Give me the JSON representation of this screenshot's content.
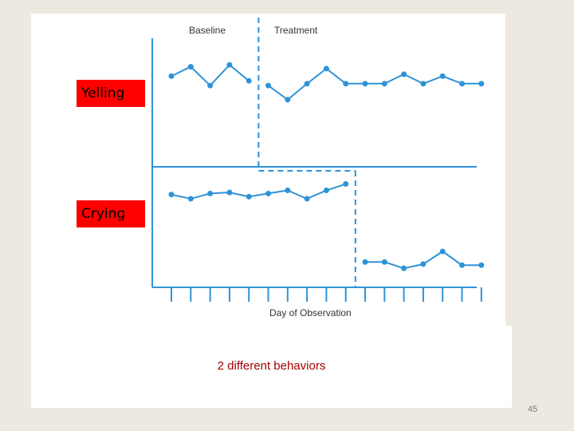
{
  "chart_data": {
    "type": "line",
    "design": "multiple-baseline across behaviors",
    "xlabel": "Day of Observation",
    "phases": [
      "Baseline",
      "Treatment"
    ],
    "days": [
      1,
      2,
      3,
      4,
      5,
      6,
      7,
      8,
      9,
      10,
      11,
      12,
      13,
      14,
      15,
      16,
      17
    ],
    "panels": [
      {
        "name": "Yelling",
        "baseline_days": [
          1,
          2,
          3,
          4,
          5
        ],
        "series": [
          {
            "phase": "Baseline",
            "x": [
              1,
              2,
              3,
              4,
              5
            ],
            "y": [
              0.7,
              0.8,
              0.6,
              0.82,
              0.65
            ]
          },
          {
            "phase": "Treatment",
            "x": [
              6,
              7,
              8,
              9,
              10,
              11,
              12,
              13,
              14,
              15,
              16,
              17
            ],
            "y": [
              0.6,
              0.45,
              0.62,
              0.78,
              0.62,
              0.62,
              0.62,
              0.72,
              0.62,
              0.7,
              0.62,
              0.62
            ]
          }
        ]
      },
      {
        "name": "Crying",
        "baseline_days": [
          1,
          2,
          3,
          4,
          5,
          6,
          7,
          8,
          9,
          10
        ],
        "series": [
          {
            "phase": "Baseline",
            "x": [
              1,
              2,
              3,
              4,
              5,
              6,
              7,
              8,
              9,
              10
            ],
            "y": [
              0.82,
              0.78,
              0.83,
              0.84,
              0.8,
              0.83,
              0.86,
              0.78,
              0.86,
              0.92
            ]
          },
          {
            "phase": "Treatment",
            "x": [
              11,
              12,
              13,
              14,
              15,
              16,
              17
            ],
            "y": [
              0.18,
              0.18,
              0.12,
              0.16,
              0.28,
              0.15,
              0.15
            ]
          }
        ]
      }
    ],
    "ylim": [
      0,
      1
    ],
    "grid": false
  },
  "panel_labels": {
    "yelling": "Yelling",
    "crying": "Crying"
  },
  "caption": "2 different behaviors",
  "page_number": "45",
  "colors": {
    "series": "#2e93d6",
    "axis": "#2e93d6",
    "label_box": "#ff0000",
    "caption": "#a00000"
  }
}
